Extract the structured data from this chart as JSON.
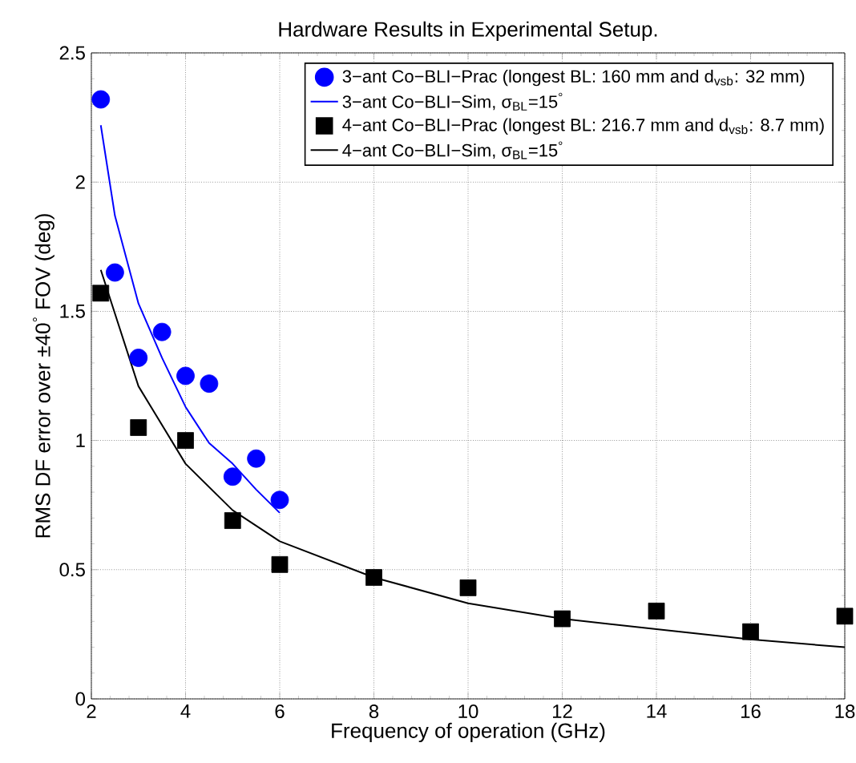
{
  "chart_data": {
    "type": "line",
    "title": "Hardware Results in Experimental Setup.",
    "xlabel": "Frequency of operation (GHz)",
    "ylabel": "RMS DF error over ±40$^{°}$ FOV (deg)",
    "xlim": [
      2,
      18
    ],
    "xticks": [
      2,
      4,
      6,
      8,
      10,
      12,
      14,
      16,
      18
    ],
    "ylim": [
      0,
      2.5
    ],
    "yticks": [
      0,
      0.5,
      1,
      1.5,
      2,
      2.5
    ],
    "grid": true,
    "legend": "top right",
    "series": [
      {
        "name": "3−ant Co−BLI−Prac (longest BL: 160 mm and d$_{vsb}$: 32 mm)",
        "type": "scatter",
        "marker": "circle",
        "color": "#0000ff",
        "x": [
          2.2,
          2.5,
          3,
          3.5,
          4,
          4.5,
          5,
          5.5,
          6
        ],
        "values": [
          2.32,
          1.65,
          1.32,
          1.42,
          1.25,
          1.22,
          0.86,
          0.93,
          0.77
        ]
      },
      {
        "name": "3−ant Co−BLI−Sim, σ$_{BL}$=15$^{°}$",
        "marker": "none",
        "color": "#0000ff",
        "x": [
          2.2,
          2.5,
          3,
          3.5,
          4,
          4.5,
          5,
          5.5,
          6
        ],
        "values": [
          2.22,
          1.87,
          1.53,
          1.32,
          1.13,
          0.99,
          0.91,
          0.81,
          0.72
        ]
      },
      {
        "name": "4−ant Co−BLI−Prac (longest BL: 216.7 mm and d$_{vsb}$: 8.7 mm)",
        "type": "scatter",
        "marker": "square",
        "color": "#000000",
        "x": [
          2.2,
          3,
          4,
          5,
          6,
          8,
          10,
          12,
          14,
          16,
          18
        ],
        "values": [
          1.57,
          1.05,
          1.0,
          0.69,
          0.52,
          0.47,
          0.43,
          0.31,
          0.34,
          0.26,
          0.32
        ]
      },
      {
        "name": "4−ant Co−BLI−Sim, σ$_{BL}$=15$^{°}$",
        "marker": "none",
        "color": "#000000",
        "x": [
          2.2,
          3,
          4,
          5,
          6,
          8,
          10,
          12,
          14,
          16,
          18
        ],
        "values": [
          1.66,
          1.21,
          0.91,
          0.73,
          0.61,
          0.47,
          0.37,
          0.31,
          0.27,
          0.23,
          0.2
        ]
      }
    ]
  }
}
